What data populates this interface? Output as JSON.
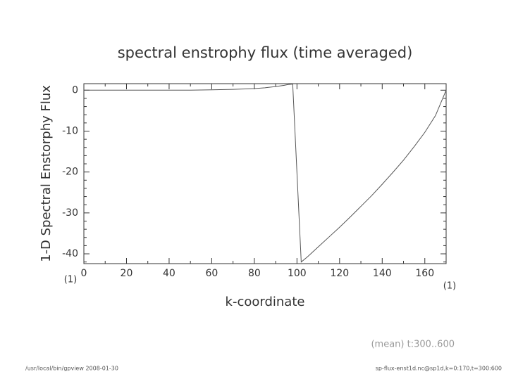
{
  "chart_data": {
    "type": "line",
    "title": "spectral enstrophy flux (time averaged)",
    "x_label": "k-coordinate",
    "y_label": "1-D Spectral Enstorphy Flux",
    "x_units": "(1)",
    "y_units": "(1)",
    "note": "(mean) t:300..600",
    "footer_left": "/usr/local/bin/gpview   2008-01-30",
    "footer_right": "sp-flux-enst1d.nc@sp1d,k=0:170,t=300:600",
    "x": [
      0,
      10,
      20,
      30,
      40,
      50,
      60,
      70,
      80,
      85,
      90,
      94,
      96,
      98,
      102,
      105,
      110,
      115,
      120,
      125,
      130,
      135,
      140,
      145,
      150,
      155,
      160,
      165,
      170
    ],
    "series": [
      {
        "name": "flux",
        "color": "#555555",
        "values": [
          0,
          0,
          0,
          0,
          0,
          0,
          0.1,
          0.2,
          0.4,
          0.6,
          0.9,
          1.2,
          1.4,
          1.5,
          -42,
          -40.7,
          -38.3,
          -35.9,
          -33.5,
          -31.0,
          -28.4,
          -25.8,
          -23.0,
          -20.1,
          -17.1,
          -13.8,
          -10.3,
          -6.2,
          0
        ]
      }
    ],
    "xlim": [
      0,
      170
    ],
    "ylim": [
      -42.4,
      1.6
    ],
    "xticks": [
      0,
      20,
      40,
      60,
      80,
      100,
      120,
      140,
      160
    ],
    "yticks": [
      0,
      -10,
      -20,
      -30,
      -40
    ],
    "xminorticks": [
      10,
      30,
      50,
      70,
      90,
      110,
      130,
      150,
      170
    ],
    "yminorticks": [
      -2,
      -4,
      -6,
      -8,
      -12,
      -14,
      -16,
      -18,
      -22,
      -24,
      -26,
      -28,
      -32,
      -34,
      -36,
      -38,
      -42
    ]
  }
}
